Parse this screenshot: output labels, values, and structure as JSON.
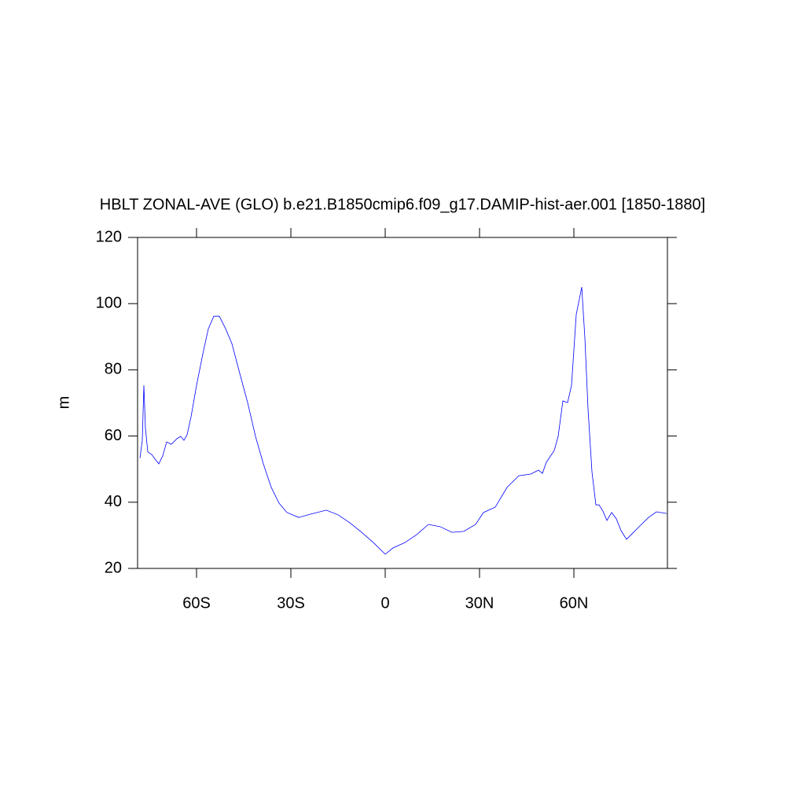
{
  "chart_data": {
    "type": "line",
    "title": "HBLT ZONAL-AVE (GLO) b.e21.B1850cmip6.f09_g17.DAMIP-hist-aer.001 [1850-1880]",
    "y_label": "m",
    "xlim": [
      -78.75,
      89.75
    ],
    "ylim": [
      20,
      120
    ],
    "xticks": [
      {
        "value": -60,
        "label": "60S"
      },
      {
        "value": -30,
        "label": "30S"
      },
      0,
      {
        "value": 30,
        "label": "30N"
      },
      {
        "value": 60,
        "label": "60N"
      }
    ],
    "yticks": [
      20,
      40,
      60,
      80,
      100,
      120
    ],
    "x": [
      -78,
      -77.25,
      -76.75,
      -76.25,
      -75.5,
      -74.25,
      -73,
      -72,
      -70.75,
      -69.5,
      -68,
      -66.25,
      -65,
      -64,
      -63,
      -61.75,
      -60,
      -58,
      -56.25,
      -54.5,
      -52.75,
      -50.75,
      -48.75,
      -46.25,
      -43.75,
      -41.25,
      -38.75,
      -36.25,
      -33.75,
      -31.25,
      -27.5,
      -23.75,
      -18.75,
      -15,
      -11.25,
      -7.5,
      -3.75,
      0,
      2.5,
      6.25,
      10,
      13.75,
      17.5,
      21.25,
      25,
      28.75,
      31.25,
      35,
      38.75,
      42.5,
      46.25,
      48.75,
      50,
      51.25,
      53.75,
      55,
      56.5,
      58,
      59.25,
      60.75,
      62.5,
      63.5,
      64.5,
      65.75,
      67,
      68,
      69.25,
      70.5,
      72,
      73.5,
      75,
      76.75,
      78.75,
      81.25,
      83.75,
      86.25,
      89.5
    ],
    "series": [
      {
        "color": "#0000ff",
        "values": [
          53.3,
          58.7,
          75.3,
          62.3,
          55.2,
          54.4,
          52.8,
          51.6,
          54,
          58.2,
          57.5,
          59.2,
          59.9,
          58.7,
          60.4,
          65.8,
          75.3,
          84.8,
          92.4,
          96.2,
          96.2,
          92.4,
          87.9,
          78.9,
          70.1,
          59.9,
          51.6,
          44.5,
          39.7,
          36.9,
          35.4,
          36.4,
          37.6,
          36.2,
          33.8,
          30.9,
          27.8,
          24.3,
          26.2,
          27.8,
          30.2,
          33.3,
          32.6,
          30.9,
          31.2,
          33.3,
          36.9,
          38.5,
          44.5,
          48.0,
          48.5,
          49.7,
          48.7,
          52.1,
          55.6,
          59.9,
          70.6,
          70.1,
          75.3,
          96.7,
          105,
          89.6,
          68.2,
          49.2,
          39.2,
          39.2,
          37.3,
          34.5,
          36.9,
          35,
          31.4,
          28.8,
          30.7,
          33.1,
          35.4,
          37.1,
          36.6
        ]
      }
    ]
  }
}
